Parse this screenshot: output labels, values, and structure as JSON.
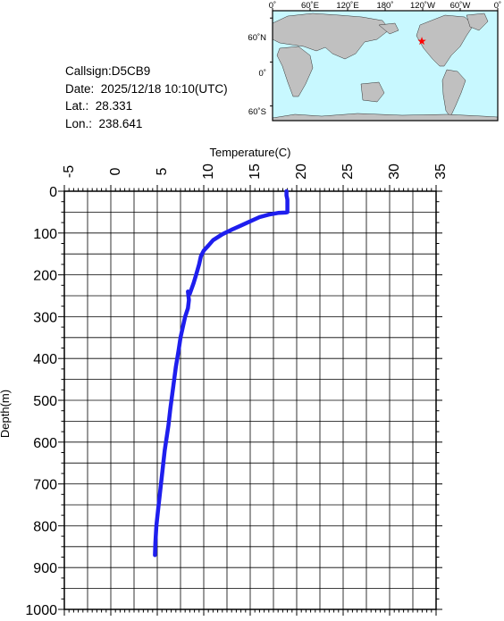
{
  "station": {
    "callsign": "Callsign:D5CB9",
    "date_label": "Date:",
    "date_value": "2025/12/18 10:10(UTC)",
    "lat_label": "Lat.:",
    "lat_value": "28.331",
    "lon_label": "Lon.:",
    "lon_value": "238.641"
  },
  "map": {
    "lon_ticks": [
      "0˚",
      "60˚E",
      "120˚E",
      "180˚",
      "120˚W",
      "60˚W",
      "0˚"
    ],
    "lat_ticks": [
      "60˚N",
      "0˚",
      "60˚S"
    ],
    "ocean_color": "#c8f8ff",
    "land_color": "#c0c0c0",
    "marker_color": "#ff0000",
    "marker_icon": "star-icon",
    "marker_lat": 28.331,
    "marker_lon": 238.641
  },
  "chart_data": {
    "type": "line",
    "xlabel": "Temperature(C)",
    "ylabel": "Depth(m)",
    "xlim": [
      -5,
      35
    ],
    "ylim": [
      1000,
      0
    ],
    "x_axis_position": "top",
    "x_ticks": [
      "-5",
      "0",
      "5",
      "10",
      "15",
      "20",
      "25",
      "30",
      "35"
    ],
    "y_ticks": [
      "0",
      "100",
      "200",
      "300",
      "400",
      "500",
      "600",
      "700",
      "800",
      "900",
      "1000"
    ],
    "grid": true,
    "line_color": "#1e1eee",
    "series": [
      {
        "temperature": [
          18.9,
          18.9,
          19.0,
          19.0,
          19.0,
          19.0,
          18.8,
          18.0,
          17.0,
          16.0,
          15.0,
          14.0,
          13.0,
          12.0,
          11.0,
          10.5,
          10.0,
          9.7,
          9.5,
          9.2,
          8.9,
          8.5,
          8.3,
          8.4,
          8.3,
          8.0,
          7.8,
          7.5,
          7.3,
          7.0,
          6.7,
          6.4,
          6.2,
          5.8,
          5.5,
          5.3,
          5.1,
          4.9,
          4.8,
          4.75
        ],
        "depth": [
          0,
          10,
          20,
          30,
          40,
          50,
          51,
          52,
          56,
          62,
          72,
          82,
          92,
          103,
          117,
          130,
          142,
          155,
          175,
          198,
          220,
          245,
          240,
          260,
          280,
          300,
          320,
          350,
          380,
          420,
          470,
          520,
          560,
          620,
          680,
          720,
          760,
          800,
          840,
          870
        ]
      }
    ]
  }
}
